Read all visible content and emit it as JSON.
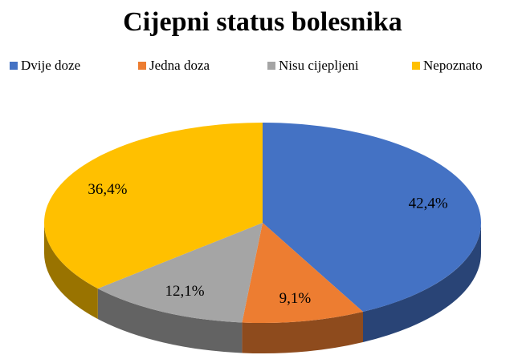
{
  "chart_data": {
    "type": "pie",
    "title": "Cijepni status bolesnika",
    "categories": [
      "Dvije doze",
      "Jedna doza",
      "Nisu cijepljeni",
      "Nepoznato"
    ],
    "values": [
      42.4,
      9.1,
      12.1,
      36.4
    ],
    "value_labels": [
      "42,4%",
      "9,1%",
      "12,1%",
      "36,4%"
    ],
    "colors": [
      "#4472c4",
      "#ed7d31",
      "#a5a5a5",
      "#ffc000"
    ],
    "legend": "top"
  }
}
